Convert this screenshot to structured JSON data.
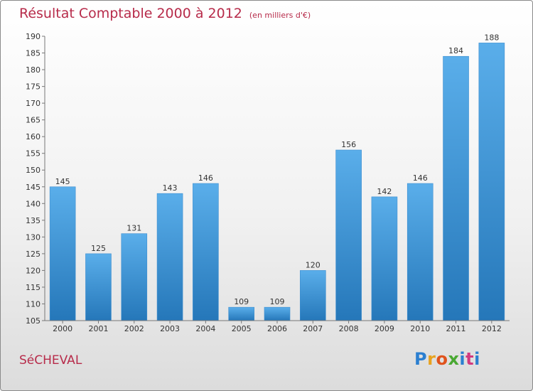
{
  "header": {
    "title": "Résultat Comptable 2000 à 2012",
    "unit": "(en milliers d'€)"
  },
  "footer": {
    "commune": "SéCHEVAL",
    "logo_letters": [
      "P",
      "r",
      "o",
      "x",
      "i",
      "t",
      "i"
    ],
    "logo_colors": [
      "#2b7fd0",
      "#e8a21f",
      "#e0531c",
      "#49a832",
      "#2b7fd0",
      "#d23a7f",
      "#2b7fd0"
    ]
  },
  "colors": {
    "title": "#b72b4a",
    "bar_top": "#5aaeea",
    "bar_bottom": "#2577b9",
    "axis": "#777777"
  },
  "chart_data": {
    "type": "bar",
    "title": "Résultat Comptable 2000 à 2012",
    "xlabel": "",
    "ylabel": "",
    "categories": [
      "2000",
      "2001",
      "2002",
      "2003",
      "2004",
      "2005",
      "2006",
      "2007",
      "2008",
      "2009",
      "2010",
      "2011",
      "2012"
    ],
    "values": [
      145,
      125,
      131,
      143,
      146,
      109,
      109,
      120,
      156,
      142,
      146,
      184,
      188
    ],
    "ylim": [
      105,
      190
    ],
    "yticks": [
      105,
      110,
      115,
      120,
      125,
      130,
      135,
      140,
      145,
      150,
      155,
      160,
      165,
      170,
      175,
      180,
      185,
      190
    ],
    "grid": false,
    "legend": "none"
  }
}
